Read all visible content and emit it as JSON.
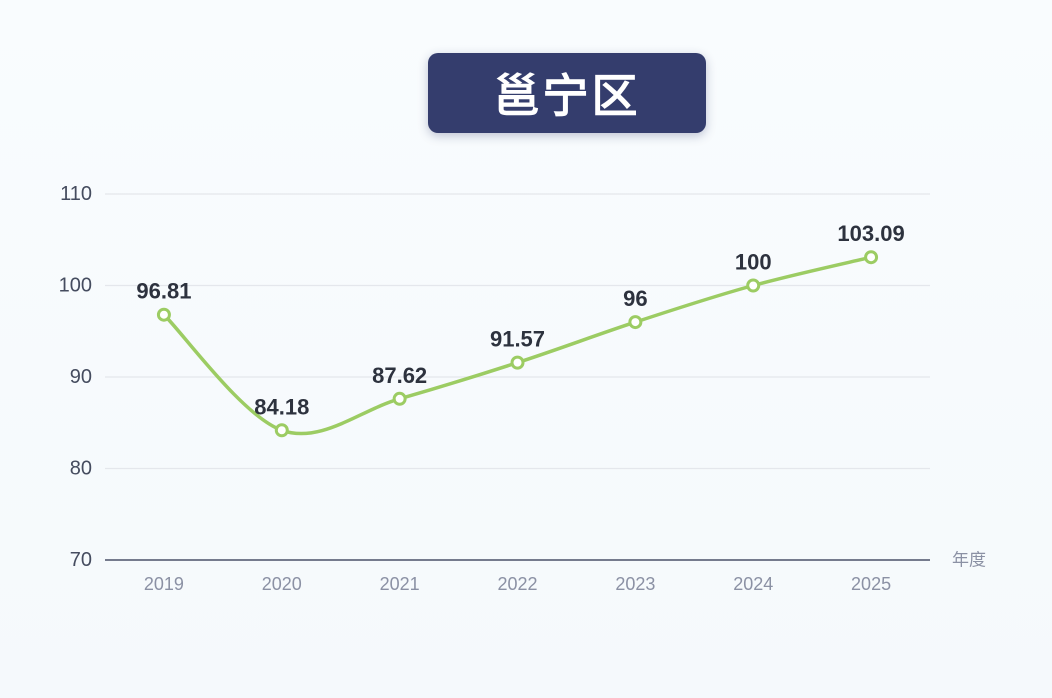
{
  "title": {
    "text": "邕宁区",
    "bg_color": "#343d6d",
    "text_color": "#ffffff"
  },
  "chart_data": {
    "type": "line",
    "title": "邕宁区",
    "categories": [
      "2019",
      "2020",
      "2021",
      "2022",
      "2023",
      "2024",
      "2025"
    ],
    "values": [
      96.81,
      84.18,
      87.62,
      91.57,
      96,
      100,
      103.09
    ],
    "data_labels": [
      "96.81",
      "84.18",
      "87.62",
      "91.57",
      "96",
      "100",
      "103.09"
    ],
    "xlabel": "年度",
    "ylabel": "",
    "ylim": [
      70,
      110
    ],
    "yticks": [
      70,
      80,
      90,
      100,
      110
    ],
    "smooth": true,
    "grid": true,
    "legend_position": "none",
    "colors": {
      "line": "#9ccc63",
      "marker_fill": "#ffffff",
      "grid_line": "#e4e7ec",
      "axis_line": "#757b8d",
      "ytick_text": "#454c5f",
      "xtick_text": "#8b91a4",
      "data_label_text": "#2d323e",
      "background": "#f6fafd"
    }
  }
}
